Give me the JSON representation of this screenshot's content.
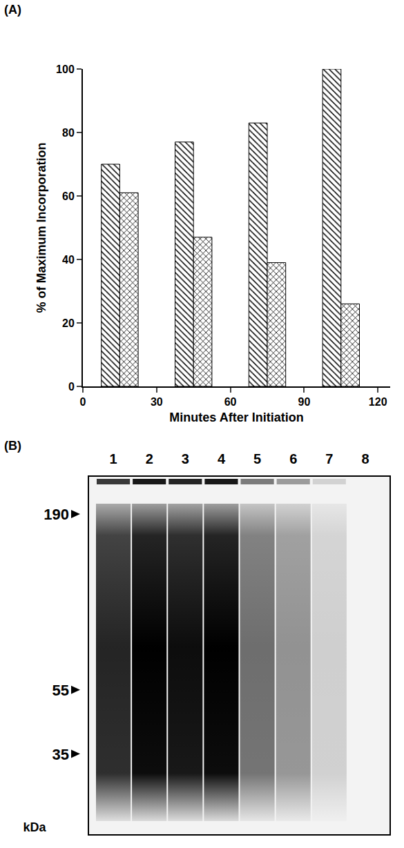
{
  "panels": {
    "A": "(A)",
    "B": "(B)"
  },
  "chart_data": {
    "type": "bar",
    "x": [
      15,
      45,
      75,
      105
    ],
    "series": [
      {
        "color": "#000000",
        "marker": "hatch",
        "values": [
          70,
          77,
          83,
          100
        ]
      },
      {
        "color": "#000000",
        "marker": "crosshatch",
        "values": [
          61,
          47,
          39,
          26
        ]
      }
    ],
    "x_label": "Minutes After Initiation",
    "y_label": "% of Maximum Incorporation",
    "xlim": [
      0,
      125
    ],
    "xticks": [
      0,
      30,
      60,
      90,
      120
    ],
    "ylim": [
      0,
      100
    ],
    "yticks": [
      0,
      20,
      40,
      60,
      80,
      100
    ],
    "grid": false
  },
  "gel": {
    "lanes": [
      "1",
      "2",
      "3",
      "4",
      "5",
      "6",
      "7",
      "8"
    ],
    "lane_intensity": [
      0.85,
      1,
      0.95,
      1,
      0.55,
      0.4,
      0.15,
      0
    ],
    "markers": [
      {
        "label": "190",
        "kda": 190
      },
      {
        "label": "55",
        "kda": 55
      },
      {
        "label": "35",
        "kda": 35
      }
    ],
    "unit": "kDa"
  }
}
